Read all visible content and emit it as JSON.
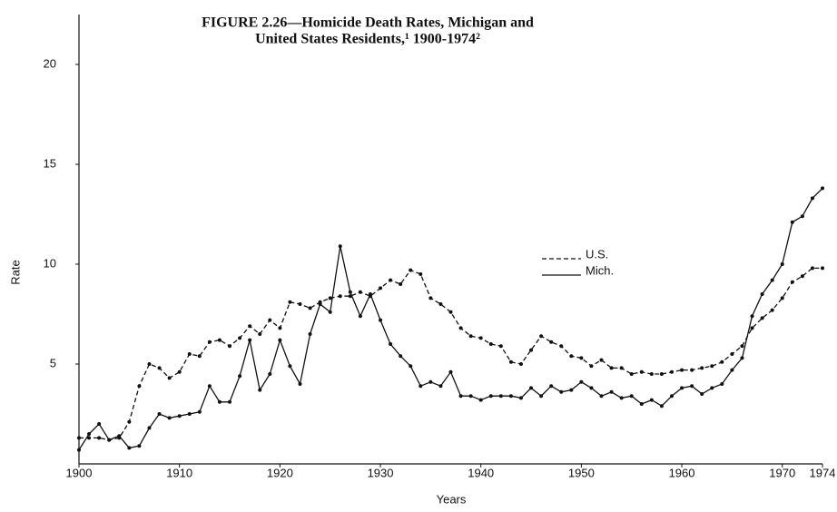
{
  "chart_data": {
    "type": "line",
    "title": [
      "FIGURE 2.26—Homicide Death Rates, Michigan and",
      "United States Residents,¹ 1900-1974²"
    ],
    "xlabel": "Years",
    "ylabel": "Rate",
    "x": [
      1900,
      1901,
      1902,
      1903,
      1904,
      1905,
      1906,
      1907,
      1908,
      1909,
      1910,
      1911,
      1912,
      1913,
      1914,
      1915,
      1916,
      1917,
      1918,
      1919,
      1920,
      1921,
      1922,
      1923,
      1924,
      1925,
      1926,
      1927,
      1928,
      1929,
      1930,
      1931,
      1932,
      1933,
      1934,
      1935,
      1936,
      1937,
      1938,
      1939,
      1940,
      1941,
      1942,
      1943,
      1944,
      1945,
      1946,
      1947,
      1948,
      1949,
      1950,
      1951,
      1952,
      1953,
      1954,
      1955,
      1956,
      1957,
      1958,
      1959,
      1960,
      1961,
      1962,
      1963,
      1964,
      1965,
      1966,
      1967,
      1968,
      1969,
      1970,
      1971,
      1972,
      1973,
      1974
    ],
    "series": [
      {
        "name": "U.S.",
        "color": "#111111",
        "linestyle": "dashed",
        "values": [
          1.3,
          1.3,
          1.3,
          1.2,
          1.3,
          2.1,
          3.9,
          5.0,
          4.8,
          4.3,
          4.6,
          5.5,
          5.4,
          6.1,
          6.2,
          5.9,
          6.3,
          6.9,
          6.5,
          7.2,
          6.8,
          8.1,
          8.0,
          7.8,
          8.1,
          8.3,
          8.4,
          8.4,
          8.6,
          8.4,
          8.8,
          9.2,
          9.0,
          9.7,
          9.5,
          8.3,
          8.0,
          7.6,
          6.8,
          6.4,
          6.3,
          6.0,
          5.9,
          5.1,
          5.0,
          5.7,
          6.4,
          6.1,
          5.9,
          5.4,
          5.3,
          4.9,
          5.2,
          4.8,
          4.8,
          4.5,
          4.6,
          4.5,
          4.5,
          4.6,
          4.7,
          4.7,
          4.8,
          4.9,
          5.1,
          5.5,
          5.9,
          6.8,
          7.3,
          7.7,
          8.3,
          9.1,
          9.4,
          9.8,
          9.8
        ]
      },
      {
        "name": "Mich.",
        "color": "#111111",
        "linestyle": "solid",
        "values": [
          0.7,
          1.5,
          2.0,
          1.2,
          1.4,
          0.8,
          0.9,
          1.8,
          2.5,
          2.3,
          2.4,
          2.5,
          2.6,
          3.9,
          3.1,
          3.1,
          4.4,
          6.2,
          3.7,
          4.5,
          6.2,
          4.9,
          4.0,
          6.5,
          8.0,
          7.6,
          10.9,
          8.6,
          7.4,
          8.5,
          7.2,
          6.0,
          5.4,
          4.9,
          3.9,
          4.1,
          3.9,
          4.6,
          3.4,
          3.4,
          3.2,
          3.4,
          3.4,
          3.4,
          3.3,
          3.8,
          3.4,
          3.9,
          3.6,
          3.7,
          4.1,
          3.8,
          3.4,
          3.6,
          3.3,
          3.4,
          3.0,
          3.2,
          2.9,
          3.4,
          3.8,
          3.9,
          3.5,
          3.8,
          4.0,
          4.7,
          5.3,
          7.4,
          8.5,
          9.2,
          10.0,
          12.1,
          12.4,
          13.3,
          13.8
        ]
      }
    ],
    "xlim": [
      1900,
      1974
    ],
    "xticks": [
      1900,
      1910,
      1920,
      1930,
      1940,
      1950,
      1960,
      1970,
      1974
    ],
    "ylim": [
      0,
      22.5
    ],
    "yticks": [
      5,
      10,
      15,
      20
    ],
    "markers": true
  }
}
